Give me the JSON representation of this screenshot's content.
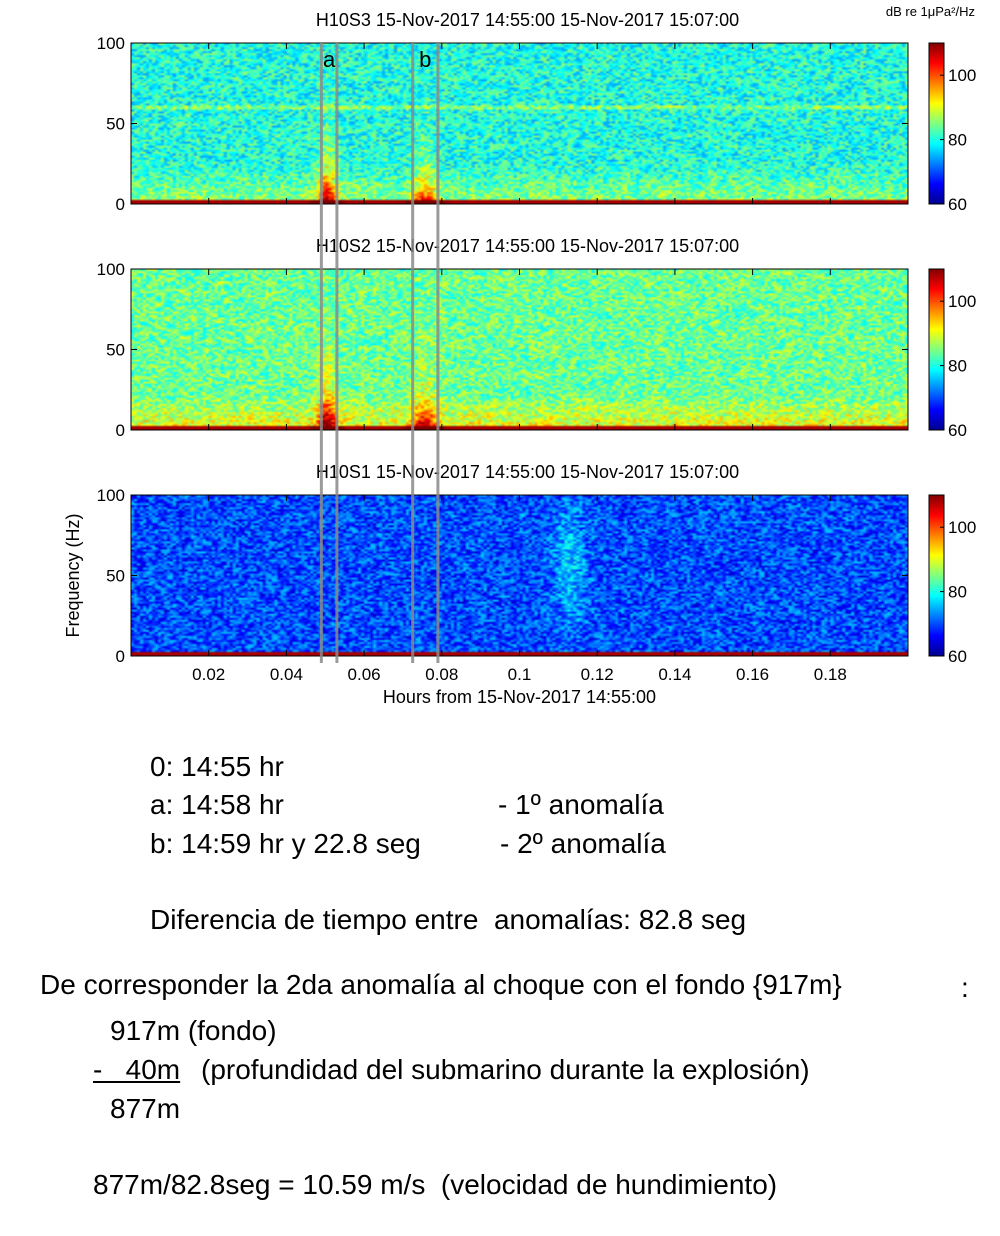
{
  "chart_data": {
    "type": "heatmap",
    "colorbar_unit": "dB re 1μPa²/Hz",
    "colorbar_range": [
      60,
      110
    ],
    "colorbar_ticks": [
      "60",
      "80",
      "100"
    ],
    "x_range": [
      0,
      0.2
    ],
    "y_range": [
      0,
      100
    ],
    "x_ticks": [
      "0.02",
      "0.04",
      "0.06",
      "0.08",
      "0.1",
      "0.12",
      "0.14",
      "0.16",
      "0.18"
    ],
    "x_tick_values": [
      0.02,
      0.04,
      0.06,
      0.08,
      0.1,
      0.12,
      0.14,
      0.16,
      0.18
    ],
    "y_ticks": [
      "0",
      "50",
      "100"
    ],
    "y_tick_values": [
      0,
      50,
      100
    ],
    "xlabel": "Hours from 15-Nov-2017 14:55:00",
    "ylabel": "Frequency (Hz)",
    "panels": [
      {
        "title": "H10S3 15-Nov-2017 14:55:00 15-Nov-2017 15:07:00",
        "base_level_db": 80,
        "tone_hz": 60
      },
      {
        "title": "H10S2 15-Nov-2017 14:55:00 15-Nov-2017 15:07:00",
        "base_level_db": 84,
        "tone_hz": null
      },
      {
        "title": "H10S1 15-Nov-2017 14:55:00 15-Nov-2017 15:07:00",
        "base_level_db": 70,
        "tone_hz": null
      }
    ],
    "events": [
      {
        "label": "a",
        "x_start": 0.049,
        "x_end": 0.053
      },
      {
        "label": "b",
        "x_start": 0.0725,
        "x_end": 0.079
      }
    ]
  },
  "notes": {
    "t0": "0: 14:55 hr",
    "ta": "a: 14:58 hr",
    "ta_desc": "- 1º anomalía",
    "tb": "b: 14:59 hr y 22.8 seg",
    "tb_desc": "- 2º anomalía",
    "diff": "Diferencia de tiempo entre  anomalías: 82.8 seg",
    "hypothesis": "De corresponder la 2da anomalía al choque con el fondo {917m}",
    "hypothesis_colon": ":",
    "calc_fondo": "917m (fondo)",
    "calc_minus": "-   40m",
    "calc_minus_desc": "(profundidad del submarino durante la explosión)",
    "calc_result": "877m",
    "velocity": "877m/82.8seg = 10.59 m/s  (velocidad de hundimiento)"
  }
}
